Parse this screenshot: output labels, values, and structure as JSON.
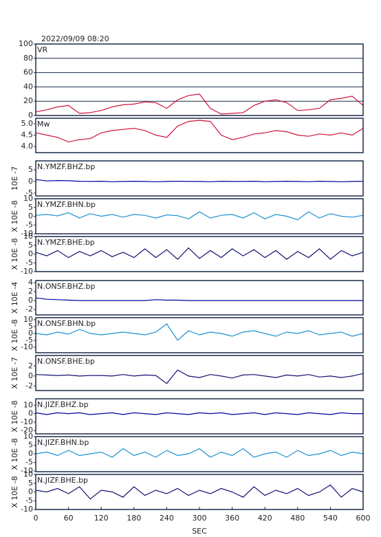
{
  "chart_data": [
    {
      "type": "line",
      "title": "2022/09/09  08:20",
      "label": "VR",
      "grid": true,
      "color": "#d0103a",
      "x": [
        0,
        20,
        40,
        60,
        80,
        100,
        120,
        140,
        160,
        180,
        200,
        220,
        240,
        260,
        280,
        300,
        320,
        340,
        360,
        380,
        400,
        420,
        440,
        460,
        480,
        500,
        520,
        540,
        560,
        580,
        600
      ],
      "values": [
        5,
        8,
        12,
        14,
        3,
        4,
        7,
        12,
        15,
        16,
        19,
        18,
        10,
        22,
        28,
        30,
        10,
        2,
        3,
        4,
        14,
        20,
        22,
        18,
        7,
        8,
        10,
        22,
        24,
        27,
        14
      ],
      "xlim": [
        0,
        600
      ],
      "ylim": [
        0,
        100
      ],
      "yticks": [
        0,
        20,
        40,
        60,
        80,
        100
      ]
    },
    {
      "type": "line",
      "label": "Mw",
      "color": "#d0103a",
      "x": [
        0,
        20,
        40,
        60,
        80,
        100,
        120,
        140,
        160,
        180,
        200,
        220,
        240,
        260,
        280,
        300,
        320,
        340,
        360,
        380,
        400,
        420,
        440,
        460,
        480,
        500,
        520,
        540,
        560,
        580,
        600
      ],
      "values": [
        4.6,
        4.5,
        4.4,
        4.2,
        4.3,
        4.35,
        4.6,
        4.7,
        4.75,
        4.8,
        4.7,
        4.5,
        4.4,
        4.9,
        5.1,
        5.15,
        5.1,
        4.5,
        4.3,
        4.4,
        4.55,
        4.6,
        4.7,
        4.65,
        4.5,
        4.45,
        4.55,
        4.5,
        4.6,
        4.5,
        4.8
      ],
      "xlim": [
        0,
        600
      ],
      "ylim": [
        3.73,
        5.24
      ],
      "yticks": [
        {
          "value": 4,
          "label": "4.0"
        },
        {
          "value": 4.5,
          "label": "4.5"
        },
        {
          "value": 5,
          "label": "5.0"
        }
      ]
    },
    {
      "type": "line",
      "label": "N.YMZF.BHZ.bp",
      "ylabel": "10E -7",
      "color": "#0000a0",
      "x": [
        0,
        20,
        40,
        60,
        80,
        100,
        120,
        140,
        160,
        180,
        200,
        220,
        240,
        260,
        280,
        300,
        320,
        340,
        360,
        380,
        400,
        420,
        440,
        460,
        480,
        500,
        520,
        540,
        560,
        580,
        600
      ],
      "values": [
        0.8,
        0.2,
        0.4,
        0.3,
        0.1,
        0,
        0.1,
        -0.1,
        0,
        0.1,
        0,
        -0.1,
        0,
        0.1,
        0,
        0,
        -0.1,
        0.1,
        0,
        0,
        0.1,
        -0.1,
        0,
        0.1,
        0,
        -0.1,
        0.1,
        0,
        -0.1,
        0,
        0.1
      ],
      "xlim": [
        0,
        600
      ],
      "ylim": [
        -6.2,
        8.8
      ],
      "yticks": [
        -5,
        0,
        5
      ]
    },
    {
      "type": "line",
      "label": "N.YMZF.BHN.bp",
      "ylabel": "X 10E -8",
      "color": "#1e90d0",
      "x": [
        0,
        20,
        40,
        60,
        80,
        100,
        120,
        140,
        160,
        180,
        200,
        220,
        240,
        260,
        280,
        300,
        320,
        340,
        360,
        380,
        400,
        420,
        440,
        460,
        480,
        500,
        520,
        540,
        560,
        580,
        600
      ],
      "values": [
        0.5,
        1,
        0.2,
        2,
        -1,
        1.5,
        0,
        1,
        -0.5,
        1,
        0.5,
        -1,
        0.8,
        0.3,
        -1.5,
        2.5,
        -1,
        0.5,
        1,
        -1,
        2,
        -1.5,
        1,
        0,
        -2,
        2.5,
        -1,
        1.5,
        0,
        -0.5,
        0.5
      ],
      "xlim": [
        0,
        600
      ],
      "ylim": [
        -10,
        10
      ],
      "yticks": [
        -10,
        -5,
        0,
        5,
        10
      ]
    },
    {
      "type": "line",
      "label": "N.YMZF.BHE.bp",
      "ylabel": "X 10E -8",
      "color": "#10106e",
      "x": [
        0,
        20,
        40,
        60,
        80,
        100,
        120,
        140,
        160,
        180,
        200,
        220,
        240,
        260,
        280,
        300,
        320,
        340,
        360,
        380,
        400,
        420,
        440,
        460,
        480,
        500,
        520,
        540,
        560,
        580,
        600
      ],
      "values": [
        1,
        -1,
        2,
        -2,
        1.5,
        -1,
        2,
        -1.5,
        1,
        -2,
        3,
        -2,
        2.5,
        -3,
        3.5,
        -2.5,
        2,
        -2,
        3,
        -1,
        2.5,
        -2,
        2,
        -3,
        1.5,
        -2,
        3,
        -3,
        2,
        -1,
        1
      ],
      "xlim": [
        0,
        600
      ],
      "ylim": [
        -10,
        10
      ],
      "yticks": [
        -10,
        -5,
        0,
        5,
        10
      ]
    },
    {
      "type": "line",
      "label": "N.ONSF.BHZ.bp",
      "ylabel": "X 10E -4",
      "color": "#0000a0",
      "x": [
        0,
        20,
        40,
        60,
        80,
        100,
        120,
        140,
        160,
        180,
        200,
        220,
        240,
        260,
        280,
        300,
        320,
        340,
        360,
        380,
        400,
        420,
        440,
        460,
        480,
        500,
        520,
        540,
        560,
        580,
        600
      ],
      "values": [
        0.6,
        0.3,
        0.2,
        0.1,
        0,
        0,
        0,
        0,
        0,
        0,
        0,
        0.2,
        0.1,
        0.1,
        0,
        0,
        0,
        0,
        0,
        0,
        0,
        0,
        0,
        0,
        0,
        0,
        0,
        0,
        0,
        0,
        0
      ],
      "xlim": [
        0,
        600
      ],
      "ylim": [
        -3.2,
        4.46
      ],
      "yticks": [
        -2,
        0,
        2,
        4
      ]
    },
    {
      "type": "line",
      "label": "N.ONSF.BHN.bp",
      "ylabel": "X 10E -8",
      "color": "#1e90d0",
      "x": [
        0,
        20,
        40,
        60,
        80,
        100,
        120,
        140,
        160,
        180,
        200,
        220,
        240,
        260,
        280,
        300,
        320,
        340,
        360,
        380,
        400,
        420,
        440,
        460,
        480,
        500,
        520,
        540,
        560,
        580,
        600
      ],
      "values": [
        0,
        -1,
        1,
        -0.5,
        3,
        0,
        -1,
        0,
        1,
        0,
        -1,
        1,
        7,
        -5,
        2,
        -1,
        1,
        0,
        -2,
        1,
        2,
        0,
        -2,
        1,
        0,
        2,
        -1,
        0,
        1,
        -2,
        0
      ],
      "xlim": [
        0,
        600
      ],
      "ylim": [
        -14,
        11.5
      ],
      "yticks": [
        -10,
        -5,
        0,
        5,
        10
      ]
    },
    {
      "type": "line",
      "label": "N.ONSF.BHE.bp",
      "ylabel": "X 10E -7",
      "color": "#10106e",
      "x": [
        0,
        20,
        40,
        60,
        80,
        100,
        120,
        140,
        160,
        180,
        200,
        220,
        240,
        260,
        280,
        300,
        320,
        340,
        360,
        380,
        400,
        420,
        440,
        460,
        480,
        500,
        520,
        540,
        560,
        580,
        600
      ],
      "values": [
        0.3,
        0.2,
        0.1,
        0.2,
        0,
        0.1,
        0.1,
        0,
        0.3,
        0,
        0.2,
        0.1,
        -1.5,
        1.2,
        0,
        -0.3,
        0.3,
        0,
        -0.4,
        0.2,
        0.3,
        0,
        -0.3,
        0.2,
        0,
        0.3,
        -0.2,
        0,
        -0.3,
        0,
        0.5
      ],
      "xlim": [
        0,
        600
      ],
      "ylim": [
        -2.9,
        4.1
      ],
      "yticks": [
        -2,
        0,
        2
      ]
    },
    {
      "type": "line",
      "label": "N.JIZF.BHZ.bp",
      "ylabel": "X 10E -8",
      "color": "#0000a0",
      "x": [
        0,
        20,
        40,
        60,
        80,
        100,
        120,
        140,
        160,
        180,
        200,
        220,
        240,
        260,
        280,
        300,
        320,
        340,
        360,
        380,
        400,
        420,
        440,
        460,
        480,
        500,
        520,
        540,
        560,
        580,
        600
      ],
      "values": [
        1,
        -1,
        1,
        0,
        1,
        -1,
        0,
        1,
        -1,
        1,
        0,
        -1,
        1,
        0,
        -1,
        1,
        0,
        1,
        -1,
        0,
        1,
        -1,
        1,
        0,
        -1,
        1,
        0,
        -1,
        1,
        0,
        0
      ],
      "xlim": [
        0,
        600
      ],
      "ylim": [
        -23.9,
        17.6
      ],
      "yticks": [
        -20,
        -10,
        0,
        10
      ]
    },
    {
      "type": "line",
      "label": "N.JIZF.BHN.bp",
      "ylabel": "X 10E -8",
      "color": "#1e90d0",
      "x": [
        0,
        20,
        40,
        60,
        80,
        100,
        120,
        140,
        160,
        180,
        200,
        220,
        240,
        260,
        280,
        300,
        320,
        340,
        360,
        380,
        400,
        420,
        440,
        460,
        480,
        500,
        520,
        540,
        560,
        580,
        600
      ],
      "values": [
        0,
        1,
        -1,
        2,
        -1,
        0,
        1,
        -2,
        3,
        -1,
        1,
        -2,
        2,
        -1,
        0,
        3,
        -2,
        1,
        -1,
        3,
        -2,
        0,
        1,
        -2,
        2,
        -1,
        0,
        2,
        -1,
        1,
        0
      ],
      "xlim": [
        0,
        600
      ],
      "ylim": [
        -10.4,
        10
      ],
      "yticks": [
        -10,
        -5,
        0,
        5,
        10
      ]
    },
    {
      "type": "line",
      "label": "N.JIZF.BHE.bp",
      "ylabel": "X 10E -8",
      "color": "#10106e",
      "xlabel": "SEC",
      "x": [
        0,
        20,
        40,
        60,
        80,
        100,
        120,
        140,
        160,
        180,
        200,
        220,
        240,
        260,
        280,
        300,
        320,
        340,
        360,
        380,
        400,
        420,
        440,
        460,
        480,
        500,
        520,
        540,
        560,
        580,
        600
      ],
      "values": [
        1,
        0,
        2,
        -1,
        3,
        -4,
        1,
        0,
        -3,
        3,
        -2,
        1,
        -1,
        2,
        -2,
        1,
        -1,
        2,
        0,
        -3,
        3,
        -2,
        1,
        -1,
        2,
        -2,
        0,
        4,
        -3,
        2,
        0
      ],
      "xlim": [
        0,
        600
      ],
      "ylim": [
        -10,
        10
      ],
      "yticks": [
        -10,
        -5,
        0,
        5,
        10
      ],
      "xticks": [
        0,
        60,
        120,
        180,
        240,
        300,
        360,
        420,
        480,
        540,
        600
      ]
    }
  ]
}
